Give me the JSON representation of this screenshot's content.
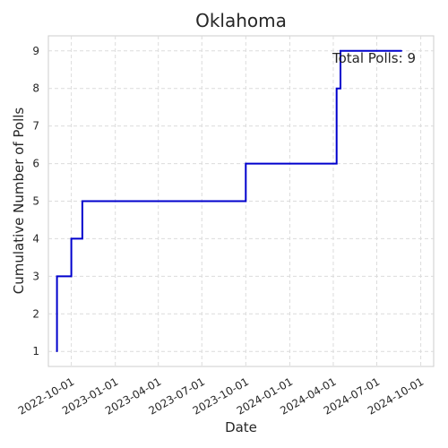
{
  "chart_data": {
    "type": "line",
    "drawstyle": "steps-post",
    "title": "Oklahoma",
    "xlabel": "Date",
    "ylabel": "Cumulative Number of Polls",
    "x_axis_type": "date",
    "xlim": [
      "2022-08-14",
      "2024-10-28"
    ],
    "ylim": [
      0.6,
      9.4
    ],
    "x_ticks": [
      "2022-10-01",
      "2023-01-01",
      "2023-04-01",
      "2023-07-01",
      "2023-10-01",
      "2024-01-01",
      "2024-04-01",
      "2024-07-01",
      "2024-10-01"
    ],
    "y_ticks": [
      1,
      2,
      3,
      4,
      5,
      6,
      7,
      8,
      9
    ],
    "grid": true,
    "series": [
      {
        "color": "#0000cd",
        "points": [
          {
            "x": "2022-09-01",
            "y": 1
          },
          {
            "x": "2022-09-01",
            "y": 3
          },
          {
            "x": "2022-10-01",
            "y": 4
          },
          {
            "x": "2022-10-24",
            "y": 5
          },
          {
            "x": "2023-10-01",
            "y": 6
          },
          {
            "x": "2024-04-08",
            "y": 8
          },
          {
            "x": "2024-04-16",
            "y": 9
          },
          {
            "x": "2024-08-22",
            "y": 9
          }
        ]
      }
    ],
    "annotation": {
      "text": "Total Polls: 9",
      "placement": "top-right"
    }
  }
}
